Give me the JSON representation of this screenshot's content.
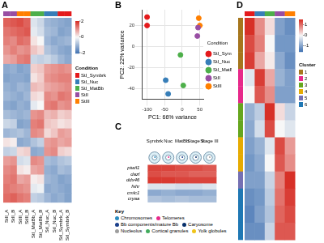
{
  "chart_data": [
    {
      "panel": "A",
      "type": "heatmap",
      "columns": [
        "StII_A",
        "StII_B",
        "StIII_A",
        "StIII_B",
        "StI_MatBb_A",
        "StI_MatBb_B",
        "StI_Nuc_A",
        "StI_Nuc_B",
        "StI_Symbrk_A",
        "StI_Symbrk_B"
      ],
      "column_colors": [
        "#984EA3",
        "#984EA3",
        "#FF7F00",
        "#FF7F00",
        "#4DAF4A",
        "#4DAF4A",
        "#377EB8",
        "#377EB8",
        "#E41A1C",
        "#E41A1C"
      ],
      "cells": [
        [
          1.5,
          1.6,
          1.7,
          1.5,
          -0.3,
          -0.5,
          -1.0,
          -1.1,
          -1.2,
          -1.3
        ],
        [
          1.3,
          1.4,
          1.5,
          1.6,
          -0.2,
          -0.4,
          -0.9,
          -1.0,
          -1.3,
          -1.2
        ],
        [
          1.2,
          1.1,
          1.4,
          1.3,
          0.2,
          0.0,
          -1.0,
          -1.2,
          -1.1,
          -1.0
        ],
        [
          1.0,
          1.2,
          1.0,
          1.1,
          0.5,
          0.3,
          -0.8,
          -1.0,
          -1.2,
          -1.3
        ],
        [
          0.8,
          0.9,
          1.2,
          1.3,
          -0.5,
          -0.6,
          -0.5,
          -0.7,
          -1.0,
          -1.2
        ],
        [
          -1.2,
          -1.1,
          -1.3,
          -1.2,
          0.4,
          0.5,
          0.9,
          1.0,
          1.1,
          1.0
        ],
        [
          -1.3,
          -1.2,
          -1.2,
          -1.3,
          0.2,
          0.4,
          1.0,
          1.1,
          1.2,
          1.2
        ],
        [
          -1.1,
          -1.2,
          -1.0,
          -1.1,
          0.6,
          0.5,
          0.8,
          0.9,
          1.0,
          1.1
        ],
        [
          -1.0,
          -1.1,
          -1.2,
          -1.0,
          0.3,
          0.2,
          1.1,
          1.0,
          1.3,
          1.2
        ],
        [
          -1.2,
          -1.3,
          -1.1,
          -1.2,
          -0.2,
          0.0,
          1.2,
          1.3,
          1.0,
          1.1
        ],
        [
          -0.9,
          -1.0,
          -1.1,
          -1.0,
          1.0,
          1.1,
          0.6,
          0.7,
          0.4,
          0.5
        ],
        [
          -0.5,
          -0.6,
          -1.3,
          -1.2,
          1.2,
          1.3,
          0.5,
          0.4,
          0.2,
          0.3
        ],
        [
          -1.0,
          -0.9,
          -0.8,
          -1.0,
          1.1,
          1.0,
          0.3,
          0.5,
          0.9,
          0.8
        ],
        [
          0.2,
          0.1,
          -1.2,
          -1.1,
          -0.8,
          -0.6,
          0.9,
          1.0,
          0.8,
          0.9
        ],
        [
          -0.6,
          -0.5,
          0.3,
          0.4,
          -1.2,
          -1.1,
          1.0,
          1.1,
          0.4,
          0.3
        ],
        [
          0.9,
          1.0,
          -0.4,
          -0.3,
          1.1,
          1.0,
          -0.9,
          -1.0,
          -0.8,
          -0.7
        ],
        [
          1.1,
          1.2,
          0.2,
          0.1,
          0.8,
          0.9,
          -1.1,
          -1.2,
          -0.9,
          -1.0
        ],
        [
          1.2,
          1.3,
          0.8,
          0.9,
          0.1,
          0.2,
          -1.0,
          -1.1,
          -1.3,
          -1.2
        ],
        [
          1.3,
          1.2,
          1.1,
          1.0,
          -0.2,
          -0.1,
          -1.2,
          -1.1,
          -1.2,
          -1.3
        ],
        [
          1.4,
          1.5,
          1.3,
          1.2,
          -0.6,
          -0.7,
          -1.0,
          -1.2,
          -1.1,
          -1.3
        ]
      ],
      "colorbar_range": [
        -2,
        2
      ],
      "colorbar_ticks": [
        -2,
        0,
        2
      ],
      "legend_title": "Condition",
      "conditions": [
        {
          "name": "StI_Symbrk",
          "color": "#E41A1C"
        },
        {
          "name": "StI_Nuc",
          "color": "#377EB8"
        },
        {
          "name": "StI_MatBb",
          "color": "#4DAF4A"
        },
        {
          "name": "StII",
          "color": "#984EA3"
        },
        {
          "name": "StIII",
          "color": "#FF7F00"
        }
      ]
    },
    {
      "panel": "B",
      "type": "scatter",
      "xlabel": "PC1: 66% variance",
      "ylabel": "PC2: 22% variance",
      "xlim": [
        -115,
        60
      ],
      "xticks": [
        -100,
        -50,
        0,
        50
      ],
      "ylim": [
        -50,
        35
      ],
      "yticks": [
        -40,
        -20,
        0,
        20
      ],
      "grid": true,
      "legend": "right",
      "legend_title": "Condition",
      "series": [
        {
          "name": "StI_Symbrk",
          "color": "#E41A1C",
          "x": [
            -100,
            -100
          ],
          "values": [
            28,
            20
          ]
        },
        {
          "name": "StI_Nuc",
          "color": "#377EB8",
          "x": [
            -47,
            -40
          ],
          "values": [
            -32,
            -45
          ]
        },
        {
          "name": "StI_MatBb",
          "color": "#4DAF4A",
          "x": [
            -5,
            3
          ],
          "values": [
            -8,
            -37
          ]
        },
        {
          "name": "StII",
          "color": "#984EA3",
          "x": [
            45,
            43
          ],
          "values": [
            18,
            10
          ]
        },
        {
          "name": "StIII",
          "color": "#FF7F00",
          "x": [
            47,
            50
          ],
          "values": [
            27,
            20
          ]
        }
      ]
    },
    {
      "panel": "C",
      "type": "heatmap",
      "columns": [
        "Symbrk",
        "Nuc",
        "MatBb",
        "Stage II",
        "Stage III"
      ],
      "rows": [
        "piwil1",
        "dazl",
        "ddx46",
        "fshr",
        "cmlc1",
        "cryaa"
      ],
      "cells": [
        [
          1.8,
          1.8,
          1.7,
          1.7,
          1.6
        ],
        [
          1.7,
          1.6,
          1.6,
          1.5,
          1.5
        ],
        [
          1.9,
          1.9,
          1.8,
          1.8,
          1.8
        ],
        [
          -0.3,
          -0.3,
          -0.4,
          -0.4,
          -0.3
        ],
        [
          -1.2,
          -1.1,
          -1.2,
          -1.2,
          -1.1
        ],
        [
          -0.8,
          -0.9,
          -0.8,
          -0.9,
          -0.9
        ]
      ],
      "color_range": [
        -2,
        2
      ],
      "key_title": "Key",
      "key": [
        {
          "label": "Chromosomes",
          "color": "#2B8CBE"
        },
        {
          "label": "Telomeres",
          "color": "#E7298A"
        },
        {
          "label": "Bb components/mature Bb",
          "color": "#1B3F8B"
        },
        {
          "label": "Caryosome",
          "color": "#08306B"
        },
        {
          "label": "Nucleolus",
          "color": "#9E9E9E"
        },
        {
          "label": "Cortical granules",
          "color": "#41AB5D"
        },
        {
          "label": "Yolk globules",
          "color": "#F0C419"
        }
      ]
    },
    {
      "panel": "D",
      "type": "heatmap",
      "column_colors": [
        "#E41A1C",
        "#377EB8",
        "#4DAF4A",
        "#984EA3",
        "#FF7F00"
      ],
      "row_colors": [
        "#A6761D",
        "#A6761D",
        "#A6761D",
        "#E7298A",
        "#E7298A",
        "#66A61E",
        "#66A61E",
        "#E6AB02",
        "#E6AB02",
        "#7570B3",
        "#1F78B4",
        "#1F78B4",
        "#1F78B4"
      ],
      "cells": [
        [
          1.5,
          0.8,
          0.2,
          -1.0,
          -1.2
        ],
        [
          1.3,
          0.9,
          0.0,
          -1.1,
          -1.1
        ],
        [
          1.4,
          0.6,
          0.1,
          -0.9,
          -1.2
        ],
        [
          -0.2,
          1.4,
          0.6,
          -0.8,
          -1.0
        ],
        [
          0.0,
          1.2,
          0.8,
          -1.0,
          -1.0
        ],
        [
          -0.8,
          -0.5,
          1.5,
          0.2,
          -0.4
        ],
        [
          -0.9,
          -0.3,
          1.3,
          0.0,
          -0.2
        ],
        [
          -1.0,
          -0.8,
          -0.2,
          1.3,
          0.7
        ],
        [
          -1.1,
          -0.9,
          0.0,
          1.2,
          0.8
        ],
        [
          -1.0,
          -1.0,
          -0.4,
          0.9,
          1.5
        ],
        [
          -1.2,
          -1.1,
          -0.5,
          1.0,
          1.4
        ],
        [
          -1.3,
          -1.0,
          -0.6,
          1.1,
          1.3
        ],
        [
          -1.2,
          -1.2,
          -0.4,
          1.2,
          1.2
        ]
      ],
      "colorbar_range": [
        -1.5,
        1.5
      ],
      "colorbar_ticks": [
        -1,
        0,
        1
      ],
      "legend_title": "Cluster",
      "clusters": [
        {
          "name": "1",
          "color": "#A6761D"
        },
        {
          "name": "2",
          "color": "#E7298A"
        },
        {
          "name": "3",
          "color": "#66A61E"
        },
        {
          "name": "4",
          "color": "#E6AB02"
        },
        {
          "name": "5",
          "color": "#7570B3"
        },
        {
          "name": "6",
          "color": "#1F78B4"
        }
      ]
    }
  ]
}
